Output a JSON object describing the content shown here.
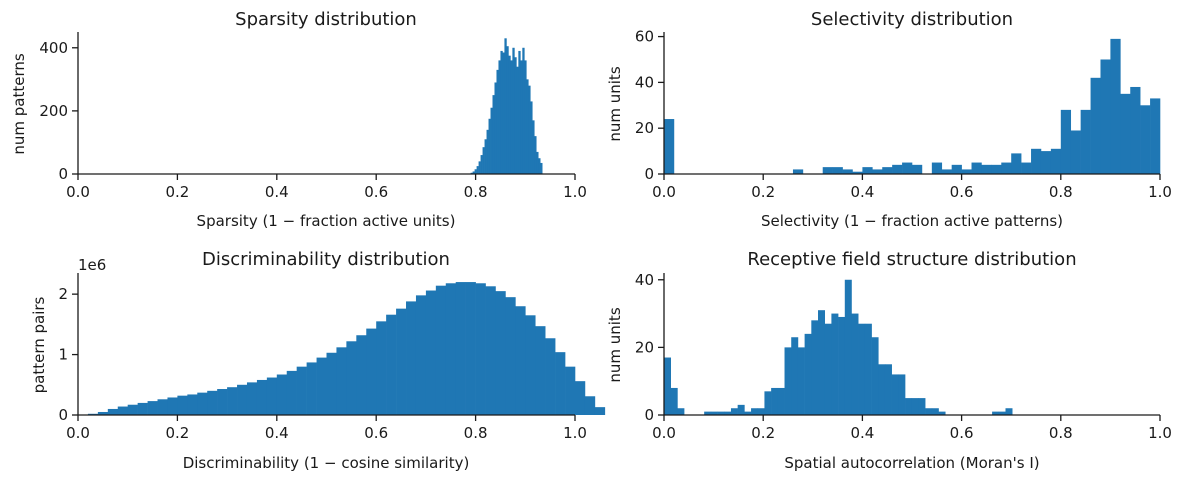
{
  "colors": {
    "bar": "#1f77b4",
    "axis": "#1a1a1a",
    "background": "#ffffff"
  },
  "chart_data": [
    {
      "type": "bar",
      "title": "Sparsity distribution",
      "xlabel": "Sparsity (1 −  fraction active units)",
      "ylabel": "num patterns",
      "xlim": [
        0,
        1
      ],
      "ylim": [
        0,
        450
      ],
      "xticks": [
        "0.0",
        "0.2",
        "0.4",
        "0.6",
        "0.8",
        "1.0"
      ],
      "xtick_values": [
        0,
        0.2,
        0.4,
        0.6,
        0.8,
        1.0
      ],
      "yticks": [
        "0",
        "200",
        "400"
      ],
      "ytick_values": [
        0,
        200,
        400
      ],
      "y_offset_label": "",
      "grid": false,
      "legend": "none",
      "bin_start": 0.79,
      "bin_width": 0.004,
      "values": [
        4,
        8,
        15,
        25,
        40,
        60,
        85,
        110,
        140,
        175,
        210,
        250,
        290,
        330,
        360,
        390,
        385,
        430,
        405,
        375,
        360,
        400,
        370,
        340,
        390,
        360,
        400,
        360,
        300,
        280,
        230,
        170,
        120,
        70,
        50,
        35
      ]
    },
    {
      "type": "bar",
      "title": "Selectivity distribution",
      "xlabel": "Selectivity (1 −  fraction active patterns)",
      "ylabel": "num units",
      "xlim": [
        0,
        1
      ],
      "ylim": [
        0,
        62
      ],
      "xticks": [
        "0.0",
        "0.2",
        "0.4",
        "0.6",
        "0.8",
        "1.0"
      ],
      "xtick_values": [
        0,
        0.2,
        0.4,
        0.6,
        0.8,
        1.0
      ],
      "yticks": [
        "0",
        "20",
        "40",
        "60"
      ],
      "ytick_values": [
        0,
        20,
        40,
        60
      ],
      "y_offset_label": "",
      "grid": false,
      "legend": "none",
      "bin_start": 0.0,
      "bin_width": 0.02,
      "values": [
        24,
        0,
        0,
        0,
        0,
        0,
        0,
        0,
        0,
        0,
        0,
        0,
        0,
        2,
        0,
        0,
        3,
        3,
        2,
        1,
        3,
        2,
        3,
        4,
        5,
        4,
        0,
        5,
        2,
        4,
        2,
        5,
        4,
        4,
        5,
        9,
        5,
        11,
        10,
        11,
        28,
        19,
        28,
        42,
        50,
        59,
        35,
        38,
        30,
        33
      ]
    },
    {
      "type": "bar",
      "title": "Discriminability distribution",
      "xlabel": "Discriminability (1 −  cosine similarity)",
      "ylabel": "pattern pairs",
      "xlim": [
        0,
        1
      ],
      "ylim": [
        0,
        2350000
      ],
      "xticks": [
        "0.0",
        "0.2",
        "0.4",
        "0.6",
        "0.8",
        "1.0"
      ],
      "xtick_values": [
        0,
        0.2,
        0.4,
        0.6,
        0.8,
        1.0
      ],
      "yticks": [
        "0",
        "1",
        "2"
      ],
      "ytick_values": [
        0,
        1000000,
        2000000
      ],
      "y_offset_label": "1e6",
      "grid": false,
      "legend": "none",
      "bin_start": 0.0,
      "bin_width": 0.02,
      "values": [
        0,
        20000,
        50000,
        100000,
        140000,
        170000,
        200000,
        230000,
        260000,
        290000,
        320000,
        340000,
        370000,
        400000,
        430000,
        460000,
        500000,
        540000,
        580000,
        620000,
        670000,
        730000,
        800000,
        870000,
        950000,
        1030000,
        1120000,
        1220000,
        1320000,
        1430000,
        1550000,
        1660000,
        1760000,
        1880000,
        1980000,
        2060000,
        2140000,
        2180000,
        2200000,
        2200000,
        2180000,
        2130000,
        2050000,
        1950000,
        1800000,
        1650000,
        1470000,
        1270000,
        1040000,
        800000,
        560000,
        310000,
        130000
      ]
    },
    {
      "type": "bar",
      "title": "Receptive field structure distribution",
      "xlabel": "Spatial autocorrelation (Moran's I)",
      "ylabel": "num units",
      "xlim": [
        0,
        1
      ],
      "ylim": [
        0,
        42
      ],
      "xticks": [
        "0.0",
        "0.2",
        "0.4",
        "0.6",
        "0.8",
        "1.0"
      ],
      "xtick_values": [
        0,
        0.2,
        0.4,
        0.6,
        0.8,
        1.0
      ],
      "yticks": [
        "0",
        "20",
        "40"
      ],
      "ytick_values": [
        0,
        20,
        40
      ],
      "y_offset_label": "",
      "grid": false,
      "legend": "none",
      "bin_start": 0.0,
      "bin_width": 0.0135,
      "values": [
        17,
        8,
        2,
        0,
        0,
        0,
        1,
        1,
        1,
        1,
        2,
        3,
        1,
        2,
        2,
        7,
        8,
        8,
        20,
        23,
        20,
        24,
        28,
        31,
        27,
        30,
        29,
        40,
        30,
        27,
        27,
        23,
        15,
        15,
        12,
        12,
        5,
        5,
        5,
        2,
        2,
        1,
        0,
        0,
        0,
        0,
        0,
        0,
        0,
        1,
        1,
        2
      ]
    }
  ]
}
